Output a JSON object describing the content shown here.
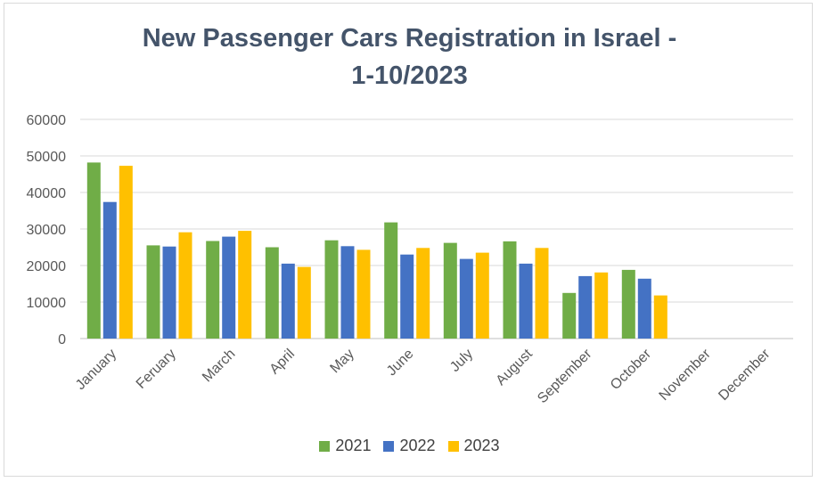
{
  "chart_data": {
    "type": "bar",
    "title_lines": [
      "New Passenger Cars Registration in Israel -",
      "1-10/2023"
    ],
    "categories": [
      "January",
      "Feruary",
      "March",
      "April",
      "May",
      "June",
      "July",
      "August",
      "September",
      "October",
      "November",
      "December"
    ],
    "series": [
      {
        "name": "2021",
        "color": "#70ad47",
        "values": [
          48200,
          25500,
          26700,
          25000,
          26900,
          31800,
          26200,
          26600,
          12500,
          18800,
          null,
          null
        ]
      },
      {
        "name": "2022",
        "color": "#4472c4",
        "values": [
          37400,
          25200,
          27900,
          20500,
          25300,
          23000,
          21800,
          20500,
          17100,
          16400,
          null,
          null
        ]
      },
      {
        "name": "2023",
        "color": "#ffc000",
        "values": [
          47300,
          29100,
          29500,
          19600,
          24300,
          24800,
          23500,
          24800,
          18100,
          11800,
          null,
          null
        ]
      }
    ],
    "yticks": [
      "0",
      "10000",
      "20000",
      "30000",
      "40000",
      "50000",
      "60000"
    ],
    "ylim": [
      0,
      60000
    ],
    "grid": true,
    "legend_position": "bottom"
  }
}
